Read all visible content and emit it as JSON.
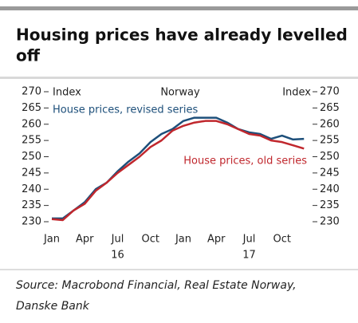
{
  "chart_data": {
    "type": "line",
    "title_lines": [
      "Housing prices have already levelled",
      "off"
    ],
    "subtitle": "Norway",
    "y_label_left": "Index",
    "y_label_right": "Index",
    "categories": [
      "Jan",
      null,
      null,
      "Apr",
      null,
      null,
      "Jul",
      null,
      null,
      "Oct",
      null,
      null,
      "Jan",
      null,
      null,
      "Apr",
      null,
      null,
      "Jul",
      null,
      null,
      "Oct",
      null,
      null
    ],
    "year_labels": [
      "16",
      "17"
    ],
    "series": [
      {
        "name": "House prices, revised series",
        "color": "#1d4f7a",
        "values": [
          231,
          231,
          233.5,
          236,
          240,
          242,
          245.5,
          248.5,
          251,
          254.5,
          257,
          258.5,
          261,
          262,
          262,
          262,
          260.5,
          258.5,
          257.5,
          257,
          255.5,
          256.5,
          255.3,
          255.5
        ]
      },
      {
        "name": "House prices, old series",
        "color": "#c0272d",
        "values": [
          230.8,
          230.5,
          233.5,
          235.5,
          239.5,
          242,
          245,
          247.5,
          250,
          253,
          255,
          258,
          259.5,
          260.5,
          261,
          261,
          260,
          258.5,
          257,
          256.5,
          255,
          254.5,
          253.5,
          252.5
        ]
      }
    ],
    "ylim": [
      230,
      270
    ],
    "yticks": [
      230,
      235,
      240,
      245,
      250,
      255,
      260,
      265,
      270
    ],
    "source_lines": [
      "Source: Macrobond Financial, Real Estate Norway,",
      "Danske Bank"
    ]
  }
}
